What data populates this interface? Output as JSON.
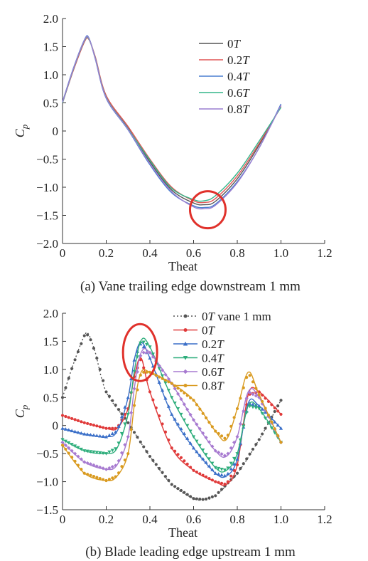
{
  "chart_data": [
    {
      "type": "line",
      "caption": "(a) Vane trailing edge downstream 1 mm",
      "xlabel": "Theat",
      "ylabel_main": "C",
      "ylabel_sub": "p",
      "xlim": [
        0,
        1.2
      ],
      "ylim": [
        -2.0,
        2.0
      ],
      "xticks": [
        0,
        0.2,
        0.4,
        0.6,
        0.8,
        1.0,
        1.2
      ],
      "xtick_labels": [
        "0",
        "0.2",
        "0.4",
        "0.6",
        "0.8",
        "1.0",
        "1.2"
      ],
      "yticks": [
        2.0,
        1.5,
        1.0,
        0.5,
        0,
        -0.5,
        -1.0,
        -1.5,
        -2.0
      ],
      "ytick_labels": [
        "2.0",
        "1.5",
        "1.0",
        "0.5",
        "0",
        "−0.5",
        "−1.0",
        "−1.5",
        "−2.0"
      ],
      "legend_position": "top-right",
      "markers": false,
      "highlight": {
        "shape": "circle",
        "center": [
          0.665,
          -1.4
        ],
        "color": "#e0312b"
      },
      "series": [
        {
          "name_num": "0",
          "name_unit": "T",
          "color": "#555555",
          "x": [
            0,
            0.05,
            0.1,
            0.12,
            0.15,
            0.2,
            0.3,
            0.4,
            0.5,
            0.6,
            0.65,
            0.7,
            0.8,
            0.9,
            1.0
          ],
          "y": [
            0.5,
            1.1,
            1.6,
            1.65,
            1.3,
            0.6,
            0.05,
            -0.55,
            -1.05,
            -1.28,
            -1.31,
            -1.25,
            -0.85,
            -0.25,
            0.45
          ]
        },
        {
          "name_num": "0.2",
          "name_unit": "T",
          "color": "#e05555",
          "x": [
            0,
            0.05,
            0.1,
            0.12,
            0.15,
            0.2,
            0.3,
            0.4,
            0.5,
            0.6,
            0.65,
            0.7,
            0.8,
            0.9,
            1.0
          ],
          "y": [
            0.5,
            1.08,
            1.58,
            1.63,
            1.32,
            0.63,
            0.08,
            -0.5,
            -1.0,
            -1.24,
            -1.27,
            -1.2,
            -0.8,
            -0.22,
            0.43
          ]
        },
        {
          "name_num": "0.4",
          "name_unit": "T",
          "color": "#4a7fd0",
          "x": [
            0,
            0.05,
            0.1,
            0.12,
            0.15,
            0.2,
            0.3,
            0.4,
            0.5,
            0.6,
            0.65,
            0.7,
            0.8,
            0.9,
            1.0
          ],
          "y": [
            0.52,
            1.12,
            1.62,
            1.66,
            1.28,
            0.58,
            0.02,
            -0.6,
            -1.1,
            -1.33,
            -1.36,
            -1.3,
            -0.9,
            -0.3,
            0.48
          ]
        },
        {
          "name_num": "0.6",
          "name_unit": "T",
          "color": "#33b58a",
          "x": [
            0,
            0.05,
            0.1,
            0.12,
            0.15,
            0.2,
            0.3,
            0.4,
            0.5,
            0.6,
            0.65,
            0.7,
            0.8,
            0.9,
            1.0
          ],
          "y": [
            0.5,
            1.1,
            1.6,
            1.64,
            1.3,
            0.6,
            0.04,
            -0.52,
            -1.02,
            -1.22,
            -1.24,
            -1.15,
            -0.75,
            -0.18,
            0.42
          ]
        },
        {
          "name_num": "0.8",
          "name_unit": "T",
          "color": "#9a7fd0",
          "x": [
            0,
            0.05,
            0.1,
            0.12,
            0.15,
            0.2,
            0.3,
            0.4,
            0.5,
            0.6,
            0.65,
            0.7,
            0.8,
            0.9,
            1.0
          ],
          "y": [
            0.51,
            1.11,
            1.61,
            1.65,
            1.29,
            0.59,
            0.03,
            -0.58,
            -1.08,
            -1.35,
            -1.38,
            -1.32,
            -0.92,
            -0.3,
            0.46
          ]
        }
      ]
    },
    {
      "type": "line",
      "caption": "(b) Blade leading edge upstream 1 mm",
      "xlabel": "Theat",
      "ylabel_main": "C",
      "ylabel_sub": "p",
      "xlim": [
        0,
        1.2
      ],
      "ylim": [
        -1.5,
        2.0
      ],
      "xticks": [
        0,
        0.2,
        0.4,
        0.6,
        0.8,
        1.0,
        1.2
      ],
      "xtick_labels": [
        "0",
        "0.2",
        "0.4",
        "0.6",
        "0.8",
        "1.0",
        "1.2"
      ],
      "yticks": [
        2.0,
        1.5,
        1.0,
        0.5,
        0,
        -0.5,
        -1.0,
        -1.5
      ],
      "ytick_labels": [
        "2.0",
        "1.5",
        "1.0",
        "0.5",
        "0",
        "−0.5",
        "−1.0",
        "−1.5"
      ],
      "legend_position": "top-right",
      "markers": true,
      "highlight": {
        "shape": "ellipse",
        "center": [
          0.355,
          1.3
        ],
        "color": "#e0312b"
      },
      "series": [
        {
          "name_num": "0",
          "name_unit": "T",
          "name_suffix": " vane 1 mm",
          "color": "#555555",
          "marker": "circle",
          "dashed": true,
          "x": [
            0,
            0.05,
            0.1,
            0.12,
            0.15,
            0.2,
            0.3,
            0.4,
            0.5,
            0.6,
            0.65,
            0.7,
            0.8,
            0.9,
            1.0
          ],
          "y": [
            0.5,
            1.1,
            1.6,
            1.62,
            1.3,
            0.6,
            0.05,
            -0.55,
            -1.05,
            -1.3,
            -1.32,
            -1.25,
            -0.85,
            -0.25,
            0.45
          ]
        },
        {
          "name_num": "0",
          "name_unit": "T",
          "color": "#e03a3a",
          "marker": "circle",
          "x": [
            0,
            0.1,
            0.2,
            0.25,
            0.3,
            0.33,
            0.36,
            0.4,
            0.5,
            0.6,
            0.7,
            0.75,
            0.8,
            0.85,
            0.9,
            1.0
          ],
          "y": [
            0.18,
            0.05,
            -0.05,
            -0.05,
            0.3,
            0.9,
            1.2,
            0.6,
            -0.4,
            -0.8,
            -1.0,
            -1.05,
            -0.7,
            0.55,
            0.6,
            0.2
          ]
        },
        {
          "name_num": "0.2",
          "name_unit": "T",
          "color": "#3a6fc8",
          "marker": "triangle",
          "x": [
            0,
            0.1,
            0.2,
            0.25,
            0.3,
            0.33,
            0.36,
            0.4,
            0.5,
            0.6,
            0.7,
            0.75,
            0.8,
            0.85,
            0.9,
            1.0
          ],
          "y": [
            -0.05,
            -0.15,
            -0.2,
            -0.1,
            0.5,
            1.2,
            1.48,
            1.2,
            0.2,
            -0.4,
            -0.85,
            -0.9,
            -0.6,
            0.4,
            0.35,
            -0.05
          ]
        },
        {
          "name_num": "0.4",
          "name_unit": "T",
          "color": "#2fae7c",
          "marker": "downtriangle",
          "x": [
            0,
            0.1,
            0.2,
            0.25,
            0.3,
            0.33,
            0.36,
            0.4,
            0.5,
            0.6,
            0.7,
            0.75,
            0.8,
            0.85,
            0.9,
            1.0
          ],
          "y": [
            -0.25,
            -0.45,
            -0.5,
            -0.4,
            0.2,
            1.0,
            1.52,
            1.4,
            0.5,
            -0.2,
            -0.75,
            -0.8,
            -0.5,
            0.35,
            0.3,
            -0.3
          ]
        },
        {
          "name_num": "0.6",
          "name_unit": "T",
          "color": "#a77ad0",
          "marker": "diamond",
          "x": [
            0,
            0.1,
            0.2,
            0.25,
            0.3,
            0.33,
            0.36,
            0.4,
            0.5,
            0.6,
            0.7,
            0.75,
            0.8,
            0.85,
            0.9,
            1.0
          ],
          "y": [
            -0.3,
            -0.65,
            -0.78,
            -0.7,
            -0.2,
            0.7,
            1.3,
            1.3,
            0.75,
            0.1,
            -0.45,
            -0.55,
            -0.2,
            0.6,
            0.5,
            -0.3
          ]
        },
        {
          "name_num": "0.8",
          "name_unit": "T",
          "color": "#d99a1f",
          "marker": "circle",
          "x": [
            0,
            0.1,
            0.2,
            0.25,
            0.3,
            0.33,
            0.36,
            0.4,
            0.5,
            0.6,
            0.7,
            0.75,
            0.8,
            0.85,
            0.9,
            1.0
          ],
          "y": [
            -0.35,
            -0.85,
            -0.98,
            -0.9,
            -0.5,
            0.4,
            0.95,
            0.95,
            0.75,
            0.45,
            -0.1,
            -0.25,
            0.3,
            0.95,
            0.55,
            -0.3
          ]
        }
      ]
    }
  ]
}
